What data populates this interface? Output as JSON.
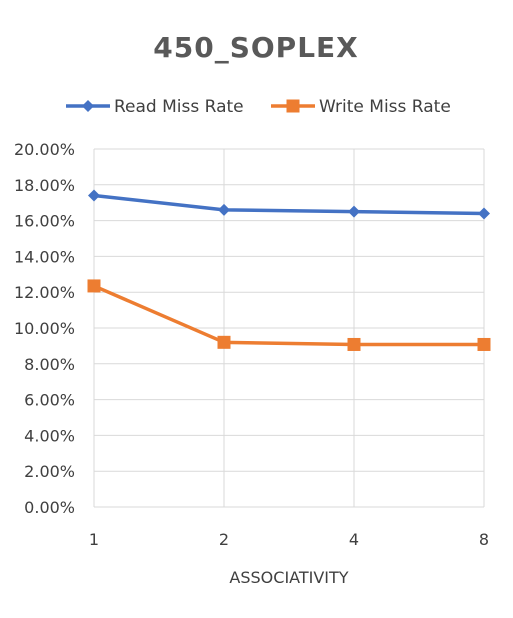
{
  "chart_data": {
    "type": "line",
    "title": "450_SOPLEX",
    "xlabel": "ASSOCIATIVITY",
    "ylabel": "",
    "categories": [
      "1",
      "2",
      "4",
      "8"
    ],
    "ylim": [
      0,
      20
    ],
    "ytick_step": 2,
    "ytick_format": "percent_2dp",
    "grid": true,
    "legend_position": "top",
    "series": [
      {
        "name": "Read Miss Rate",
        "values": [
          17.4,
          16.6,
          16.5,
          16.4
        ],
        "color": "#4472c4",
        "marker": "diamond"
      },
      {
        "name": "Write Miss Rate",
        "values": [
          12.35,
          9.2,
          9.08,
          9.08
        ],
        "color": "#ed7d31",
        "marker": "square"
      }
    ]
  }
}
